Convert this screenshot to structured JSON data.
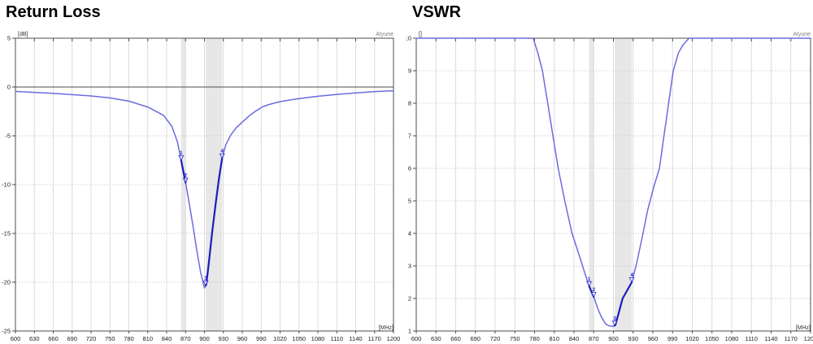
{
  "watermark": "Atyune",
  "colors": {
    "curve": "#6b6be0",
    "curve_highlight": "#1c1cbe",
    "marker": "#2222c8",
    "band_fill": "#e7e7e7",
    "frame": "#4d4d4d",
    "grid_vertical": "#dcdcdc",
    "grid_horizontal": "#cfcfcf",
    "zero_line": "#4d4d4d"
  },
  "chart_data": [
    {
      "type": "line",
      "title": "Return Loss",
      "y_unit_label": "[dB]",
      "x_unit_label": "[MHz]",
      "xlim": [
        600,
        1200
      ],
      "ylim": [
        -25,
        5
      ],
      "x_ticks": [
        600,
        630,
        660,
        690,
        720,
        750,
        780,
        810,
        840,
        870,
        900,
        930,
        960,
        990,
        1020,
        1050,
        1080,
        1110,
        1140,
        1170,
        1200
      ],
      "y_ticks": [
        5,
        0,
        -5,
        -10,
        -15,
        -20,
        -25
      ],
      "grid": true,
      "zero_line": 0,
      "shaded_bands_mhz": [
        [
          863,
          870
        ],
        [
          902,
          928
        ]
      ],
      "highlighted_ranges_mhz": [
        [
          863,
          870
        ],
        [
          902,
          928
        ]
      ],
      "markers": [
        {
          "label": "1",
          "mhz": 863,
          "approx_value": -7.5
        },
        {
          "label": "2",
          "mhz": 870,
          "approx_value": -9.8
        },
        {
          "label": "3",
          "mhz": 902,
          "approx_value": -20.3
        },
        {
          "label": "4",
          "mhz": 928,
          "approx_value": -7.3
        }
      ],
      "series": [
        {
          "name": "Return Loss (dB)",
          "points": [
            [
              600,
              -0.45
            ],
            [
              630,
              -0.55
            ],
            [
              660,
              -0.65
            ],
            [
              690,
              -0.78
            ],
            [
              720,
              -0.92
            ],
            [
              750,
              -1.12
            ],
            [
              780,
              -1.45
            ],
            [
              810,
              -2.05
            ],
            [
              835,
              -2.9
            ],
            [
              848,
              -4.0
            ],
            [
              857,
              -5.6
            ],
            [
              863,
              -7.5
            ],
            [
              867,
              -8.8
            ],
            [
              870,
              -9.8
            ],
            [
              876,
              -12.0
            ],
            [
              882,
              -14.3
            ],
            [
              888,
              -16.8
            ],
            [
              894,
              -19.0
            ],
            [
              900,
              -20.6
            ],
            [
              903,
              -20.2
            ],
            [
              907,
              -18.0
            ],
            [
              912,
              -15.0
            ],
            [
              918,
              -11.8
            ],
            [
              923,
              -9.4
            ],
            [
              928,
              -7.3
            ],
            [
              934,
              -5.9
            ],
            [
              942,
              -4.9
            ],
            [
              950,
              -4.2
            ],
            [
              960,
              -3.6
            ],
            [
              972,
              -2.9
            ],
            [
              983,
              -2.4
            ],
            [
              993,
              -2.0
            ],
            [
              1005,
              -1.75
            ],
            [
              1020,
              -1.5
            ],
            [
              1040,
              -1.28
            ],
            [
              1060,
              -1.1
            ],
            [
              1080,
              -0.95
            ],
            [
              1110,
              -0.76
            ],
            [
              1140,
              -0.6
            ],
            [
              1170,
              -0.47
            ],
            [
              1200,
              -0.38
            ]
          ]
        }
      ]
    },
    {
      "type": "line",
      "title": "VSWR",
      "y_unit_label": "[]",
      "x_unit_label": "[MHz]",
      "xlim": [
        600,
        1200
      ],
      "ylim": [
        1,
        10
      ],
      "x_ticks": [
        600,
        630,
        660,
        690,
        720,
        750,
        780,
        810,
        840,
        870,
        900,
        930,
        960,
        990,
        1020,
        1050,
        1080,
        1110,
        1140,
        1170,
        1200
      ],
      "y_ticks": [
        10,
        9,
        8,
        7,
        6,
        5,
        4,
        3,
        2,
        1
      ],
      "grid": true,
      "zero_line": null,
      "shaded_bands_mhz": [
        [
          863,
          870
        ],
        [
          902,
          928
        ]
      ],
      "highlighted_ranges_mhz": [
        [
          863,
          870
        ],
        [
          902,
          928
        ]
      ],
      "markers": [
        {
          "label": "1",
          "mhz": 863,
          "approx_value": 2.38
        },
        {
          "label": "2",
          "mhz": 870,
          "approx_value": 2.05
        },
        {
          "label": "3",
          "mhz": 902,
          "approx_value": 1.18
        },
        {
          "label": "4",
          "mhz": 928,
          "approx_value": 2.47
        }
      ],
      "series": [
        {
          "name": "VSWR",
          "points": [
            [
              600,
              10
            ],
            [
              778,
              10
            ],
            [
              785,
              9.55
            ],
            [
              792,
              9.0
            ],
            [
              800,
              8.0
            ],
            [
              808,
              7.0
            ],
            [
              816,
              6.0
            ],
            [
              826,
              5.0
            ],
            [
              837,
              4.0
            ],
            [
              850,
              3.2
            ],
            [
              857,
              2.75
            ],
            [
              863,
              2.38
            ],
            [
              870,
              2.05
            ],
            [
              876,
              1.7
            ],
            [
              882,
              1.42
            ],
            [
              888,
              1.22
            ],
            [
              893,
              1.16
            ],
            [
              900,
              1.14
            ],
            [
              903,
              1.18
            ],
            [
              908,
              1.55
            ],
            [
              914,
              2.0
            ],
            [
              921,
              2.25
            ],
            [
              928,
              2.5
            ],
            [
              935,
              3.05
            ],
            [
              944,
              3.9
            ],
            [
              952,
              4.7
            ],
            [
              961,
              5.4
            ],
            [
              970,
              6.0
            ],
            [
              977,
              7.0
            ],
            [
              984,
              8.0
            ],
            [
              991,
              9.0
            ],
            [
              999,
              9.55
            ],
            [
              1006,
              9.8
            ],
            [
              1015,
              10
            ],
            [
              1200,
              10
            ]
          ]
        }
      ]
    }
  ]
}
